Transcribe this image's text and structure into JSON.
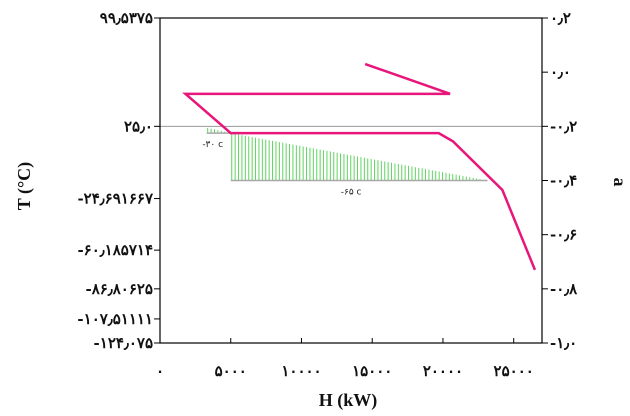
{
  "chart_data": {
    "type": "line",
    "title": "",
    "xlabel": "H (kW)",
    "ylabel_left": "T (°C)",
    "ylabel_right": "a",
    "xlim": [
      0,
      27000
    ],
    "x_ticks": [
      {
        "value": 0,
        "label": "۰"
      },
      {
        "value": 5000,
        "label": "۵۰۰۰"
      },
      {
        "value": 10000,
        "label": "۱۰۰۰۰"
      },
      {
        "value": 15000,
        "label": "۱۵۰۰۰"
      },
      {
        "value": 20000,
        "label": "۲۰۰۰۰"
      },
      {
        "value": 25000,
        "label": "۲۵۰۰۰"
      }
    ],
    "ylim_left": [
      -124.075,
      99.5375
    ],
    "y_left_ticks": [
      {
        "value": 99.5375,
        "label": "۹۹٫۵۳۷۵"
      },
      {
        "value": 25.0,
        "label": "۲۵٫۰"
      },
      {
        "value": -24.691667,
        "label": "-۲۴٫۶۹۱۶۶۷"
      },
      {
        "value": -60.185714,
        "label": "-۶۰٫۱۸۵۷۱۴"
      },
      {
        "value": -86.80625,
        "label": "-۸۶٫۸۰۶۲۵"
      },
      {
        "value": -107.51111,
        "label": "-۱۰۷٫۵۱۱۱۱"
      },
      {
        "value": -124.075,
        "label": "-۱۲۴٫۰۷۵"
      }
    ],
    "ylim_right": [
      -1.0,
      0.2
    ],
    "y_right_ticks": [
      {
        "value": 0.2,
        "label": "۰٫۲"
      },
      {
        "value": 0.0,
        "label": "۰٫۰"
      },
      {
        "value": -0.2,
        "label": "-۰٫۲"
      },
      {
        "value": -0.4,
        "label": "-۰٫۴"
      },
      {
        "value": -0.6,
        "label": "-۰٫۶"
      },
      {
        "value": -0.8,
        "label": "-۰٫۸"
      },
      {
        "value": -1.0,
        "label": "-۱٫۰"
      }
    ],
    "reference_line": {
      "y": 25.0,
      "axis": "left"
    },
    "pink_curve": {
      "color": "#e8157a",
      "points": [
        {
          "x": 14500,
          "y": 0.03
        },
        {
          "x": 20500,
          "y": -0.08
        },
        {
          "x": 1800,
          "y": -0.08
        },
        {
          "x": 5000,
          "y": -0.225
        },
        {
          "x": 19700,
          "y": -0.225
        },
        {
          "x": 20700,
          "y": -0.255
        },
        {
          "x": 24200,
          "y": -0.435
        },
        {
          "x": 26500,
          "y": -0.73
        }
      ]
    },
    "shaded_regions": [
      {
        "label": "-۳۰ c",
        "x": [
          3300,
          5000
        ],
        "y": [
          -0.205,
          -0.225
        ],
        "baseline_y": -0.225,
        "color": "#5fd35f"
      },
      {
        "label": "-۶۵ c",
        "x": [
          5000,
          23150
        ],
        "y": [
          -0.225,
          -0.4
        ],
        "baseline_y": -0.4,
        "color": "#5fd35f"
      }
    ],
    "grid": false,
    "legend": "none"
  }
}
